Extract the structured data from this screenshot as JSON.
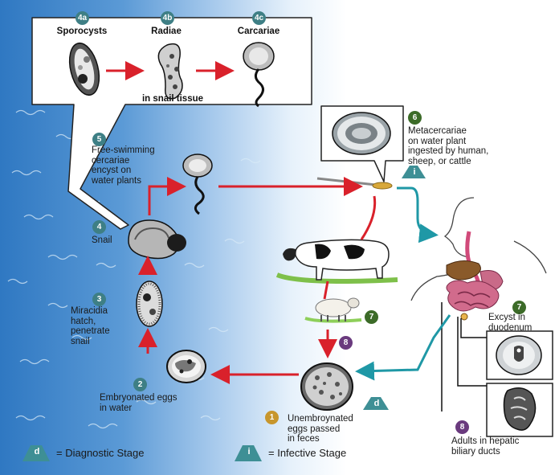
{
  "stages": {
    "s4a": {
      "badge": "4a",
      "label": "Sporocysts"
    },
    "s4b": {
      "badge": "4b",
      "label": "Radiae"
    },
    "s4c": {
      "badge": "4c",
      "label": "Carcariae"
    },
    "snail_tissue": "in snail tissue",
    "s5": {
      "badge": "5",
      "lines": [
        "Free-swimming",
        "cercariae",
        "encyst on",
        "water plants"
      ]
    },
    "s4": {
      "badge": "4",
      "label": "Snail"
    },
    "s3": {
      "badge": "3",
      "lines": [
        "Miracidia",
        "hatch,",
        "penetrate",
        "snail"
      ]
    },
    "s2": {
      "badge": "2",
      "lines": [
        "Embryonated eggs",
        "in water"
      ]
    },
    "s1": {
      "badge": "1",
      "lines": [
        "Unembroynated",
        "eggs passed",
        "in feces"
      ]
    },
    "s6": {
      "badge": "6",
      "lines": [
        "Metacercariae",
        "on water plant",
        "ingested by human,",
        "sheep, or cattle"
      ]
    },
    "s7": {
      "badge": "7",
      "lines": [
        "Excyst in",
        "duodenum"
      ]
    },
    "s7b": {
      "badge": "7"
    },
    "s8": {
      "badge": "8",
      "lines": [
        "Adults in hepatic",
        "biliary ducts"
      ]
    },
    "s8b": {
      "badge": "8"
    }
  },
  "markers": {
    "i": "i",
    "d": "d"
  },
  "legend": {
    "diagnostic_symbol": "d",
    "diagnostic_label": "= Diagnostic Stage",
    "infective_symbol": "i",
    "infective_label": "= Infective Stage"
  },
  "colors": {
    "arrow_red": "#d9212b",
    "arrow_teal": "#1f98a6",
    "badge_teal": "#3e7f85",
    "badge_purple": "#6a3a7e",
    "badge_green": "#3c6b28",
    "badge_gold": "#c7962d"
  }
}
